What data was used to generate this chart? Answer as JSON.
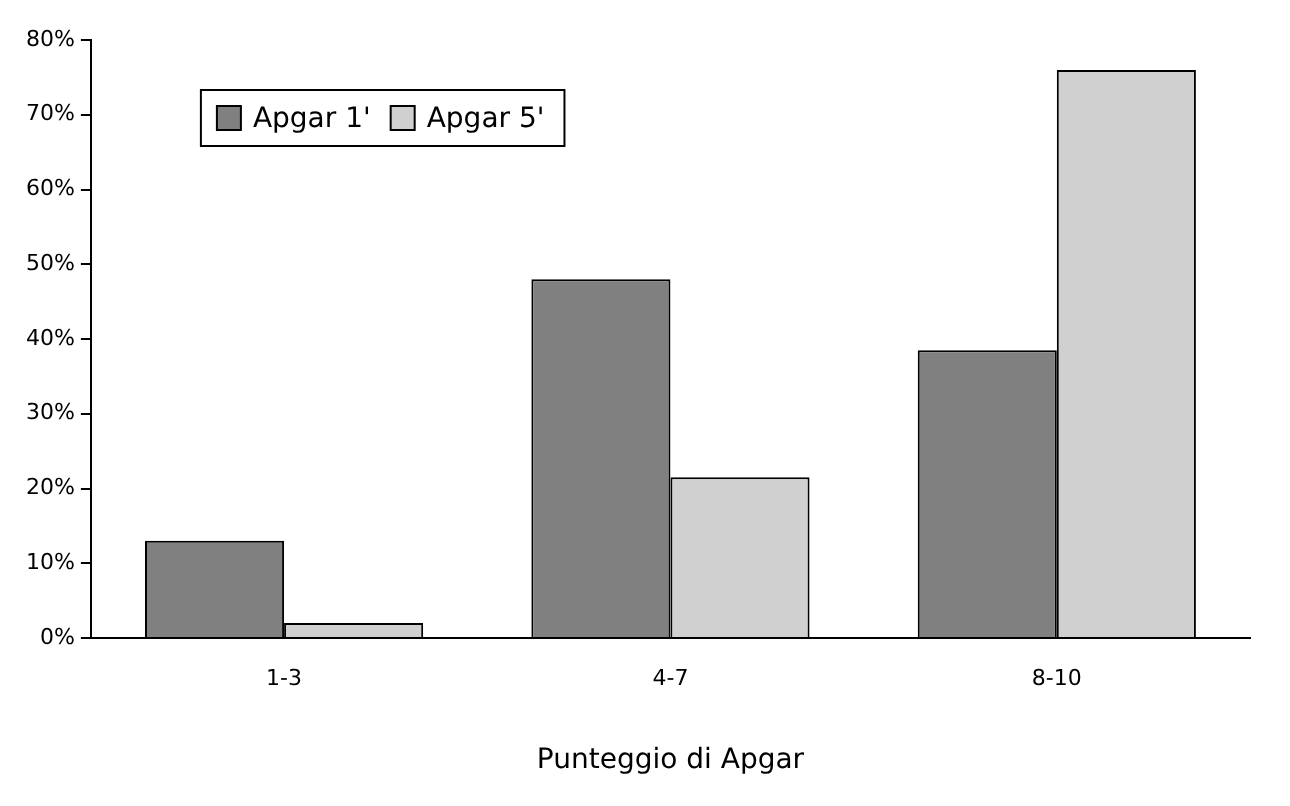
{
  "chart_data": {
    "type": "bar",
    "xlabel": "Punteggio di Apgar",
    "categories": [
      "1-3",
      "4-7",
      "8-10"
    ],
    "series": [
      {
        "name": "Apgar 1'",
        "color": "#808080",
        "values": [
          13,
          48,
          38.5
        ]
      },
      {
        "name": "Apgar 5'",
        "color": "#d0d0d0",
        "values": [
          2,
          21.5,
          76
        ]
      }
    ],
    "ylim": [
      0,
      80
    ],
    "yticks": [
      {
        "value": 0,
        "label": "0%"
      },
      {
        "value": 10,
        "label": "10%"
      },
      {
        "value": 20,
        "label": "20%"
      },
      {
        "value": 30,
        "label": "30%"
      },
      {
        "value": 40,
        "label": "40%"
      },
      {
        "value": 50,
        "label": "50%"
      },
      {
        "value": 60,
        "label": "60%"
      },
      {
        "value": 70,
        "label": "70%"
      },
      {
        "value": 80,
        "label": "80%"
      }
    ],
    "grid": false,
    "legend": "top left"
  }
}
